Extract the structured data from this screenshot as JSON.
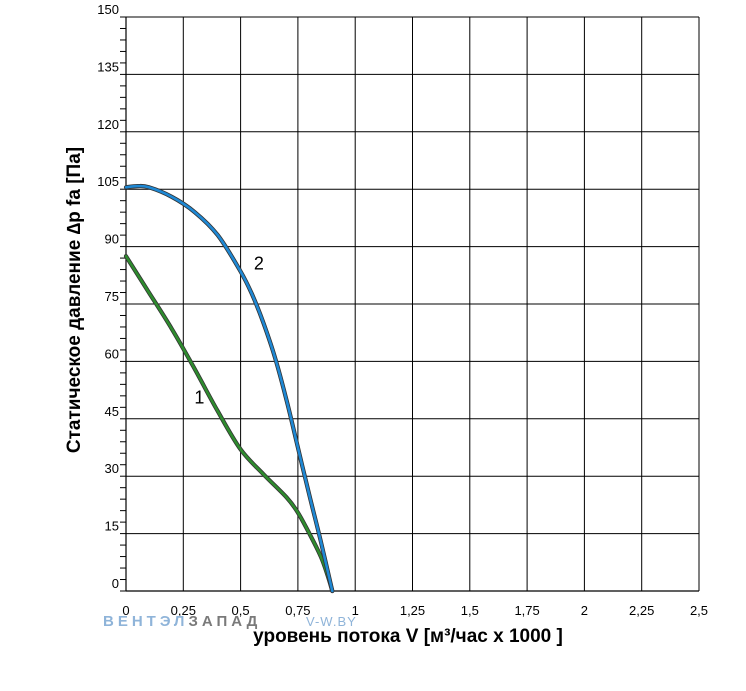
{
  "chart_data": {
    "type": "line",
    "title": "",
    "xlabel": "уровень потока  V [м³/час x 1000 ]",
    "ylabel": "Статическое давление  ∆p fa [Па]",
    "xlim": [
      0,
      2.5
    ],
    "ylim": [
      0,
      150
    ],
    "x_ticks": [
      "0",
      "0,25",
      "0,5",
      "0,75",
      "1",
      "1,25",
      "1,5",
      "1,75",
      "2",
      "2,25",
      "2,5"
    ],
    "y_ticks": [
      "0",
      "15",
      "30",
      "45",
      "60",
      "75",
      "90",
      "105",
      "120",
      "135",
      "150"
    ],
    "grid": true,
    "series": [
      {
        "name": "1",
        "color": "#2e8b2e",
        "points": [
          [
            0,
            87.5
          ],
          [
            0.1,
            78
          ],
          [
            0.2,
            68.5
          ],
          [
            0.3,
            58
          ],
          [
            0.4,
            47
          ],
          [
            0.5,
            37
          ],
          [
            0.6,
            30.5
          ],
          [
            0.7,
            24.5
          ],
          [
            0.75,
            20.5
          ],
          [
            0.8,
            15
          ],
          [
            0.85,
            9
          ],
          [
            0.88,
            4
          ],
          [
            0.9,
            0
          ]
        ]
      },
      {
        "name": "2",
        "color": "#1e88d4",
        "points": [
          [
            0,
            105.5
          ],
          [
            0.05,
            105.8
          ],
          [
            0.1,
            105.5
          ],
          [
            0.2,
            103
          ],
          [
            0.3,
            99
          ],
          [
            0.4,
            93
          ],
          [
            0.5,
            83.5
          ],
          [
            0.55,
            77.5
          ],
          [
            0.6,
            70
          ],
          [
            0.65,
            61
          ],
          [
            0.7,
            50
          ],
          [
            0.75,
            37.5
          ],
          [
            0.8,
            25
          ],
          [
            0.85,
            13
          ],
          [
            0.9,
            0
          ]
        ]
      }
    ]
  },
  "watermark": {
    "brand_light": "ВЕНТЭЛ",
    "brand_dark": "ЗАПАД",
    "site": "V-W.BY"
  }
}
